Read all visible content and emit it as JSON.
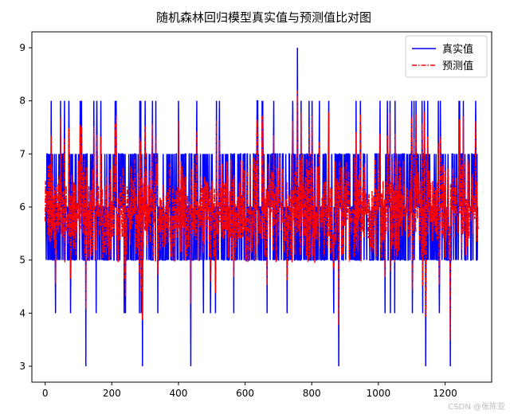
{
  "chart_data": {
    "type": "line",
    "title": "随机森林回归模型真实值与预测值比对图",
    "xlabel": "",
    "ylabel": "",
    "xlim": [
      -40,
      1340
    ],
    "ylim": [
      2.7,
      9.3
    ],
    "xticks": [
      0,
      200,
      400,
      600,
      800,
      1000,
      1200
    ],
    "yticks": [
      3,
      4,
      5,
      6,
      7,
      8,
      9
    ],
    "n_points": 1300,
    "legend_position": "top-right",
    "grid": false,
    "series": [
      {
        "name": "真实值",
        "style": "solid",
        "color": "#0000ff",
        "value_set": [
          3,
          4,
          5,
          6,
          7,
          8,
          9
        ]
      },
      {
        "name": "预测值",
        "style": "dashdot",
        "color": "#ff0000",
        "value_range": [
          3.5,
          8.2
        ]
      }
    ],
    "highlights": [
      {
        "x": 122,
        "true": 3
      },
      {
        "x": 292,
        "true": 3
      },
      {
        "x": 437,
        "true": 3
      },
      {
        "x": 881,
        "true": 3
      },
      {
        "x": 1142,
        "true": 3
      },
      {
        "x": 1216,
        "true": 3
      },
      {
        "x": 757,
        "true": 9
      }
    ]
  },
  "watermark": "CSDN @张陈亚"
}
